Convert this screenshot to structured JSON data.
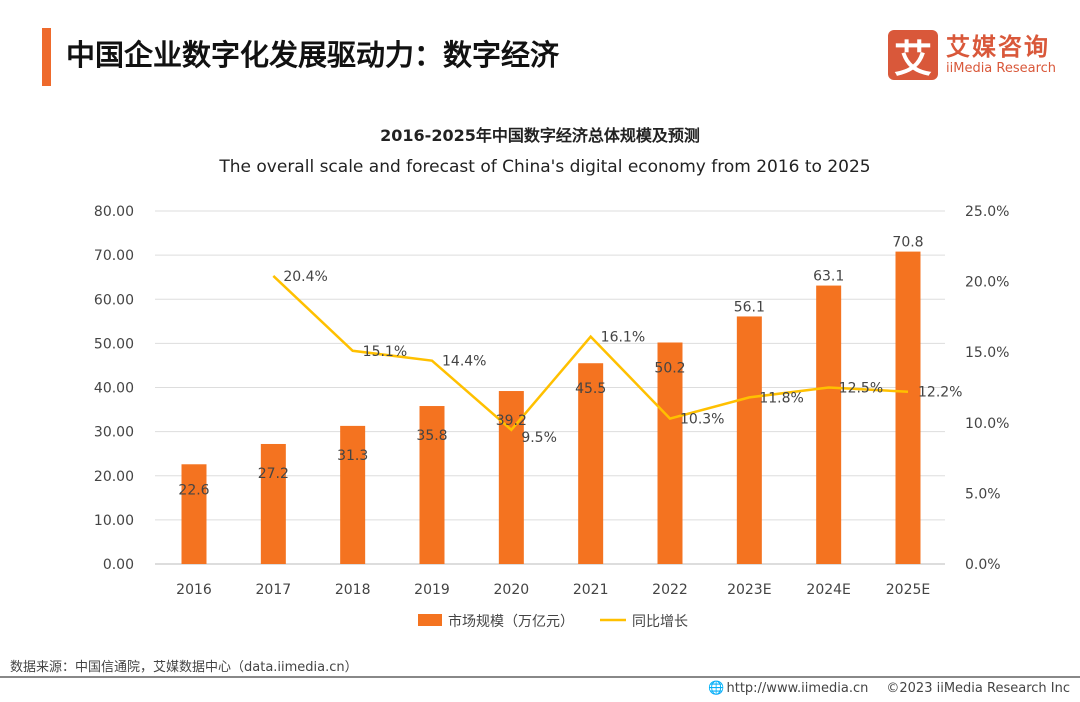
{
  "header": {
    "title": "中国企业数字化发展驱动力：数字经济",
    "logo_mark": "艾",
    "logo_cn": "艾媒咨询",
    "logo_en": "iiMedia Research"
  },
  "chart_data": {
    "type": "bar",
    "title": "2016-2025年中国数字经济总体规模及预测",
    "subtitle": "The overall scale and forecast of China's digital economy from 2016 to 2025",
    "categories": [
      "2016",
      "2017",
      "2018",
      "2019",
      "2020",
      "2021",
      "2022",
      "2023E",
      "2024E",
      "2025E"
    ],
    "series": [
      {
        "name": "市场规模（万亿元）",
        "type": "bar",
        "axis": "left",
        "color": "#f47320",
        "values": [
          22.6,
          27.2,
          31.3,
          35.8,
          39.2,
          45.5,
          50.2,
          56.1,
          63.1,
          70.8
        ],
        "labels": [
          "22.6",
          "27.2",
          "31.3",
          "35.8",
          "39.2",
          "45.5",
          "50.2",
          "56.1",
          "63.1",
          "70.8"
        ]
      },
      {
        "name": "同比增长",
        "type": "line",
        "axis": "right",
        "color": "#ffc000",
        "values": [
          null,
          20.4,
          15.1,
          14.4,
          9.5,
          16.1,
          10.3,
          11.8,
          12.5,
          12.2
        ],
        "labels": [
          "",
          "20.4%",
          "15.1%",
          "14.4%",
          "9.5%",
          "16.1%",
          "10.3%",
          "11.8%",
          "12.5%",
          "12.2%"
        ]
      }
    ],
    "ylim": [
      0,
      80
    ],
    "y2lim": [
      0,
      25
    ],
    "yticks": [
      "0.00",
      "10.00",
      "20.00",
      "30.00",
      "40.00",
      "50.00",
      "60.00",
      "70.00",
      "80.00"
    ],
    "y2ticks": [
      "0.0%",
      "5.0%",
      "10.0%",
      "15.0%",
      "20.0%",
      "25.0%"
    ],
    "grid": true,
    "legend": "bottom"
  },
  "source": "数据来源：中国信通院，艾媒数据中心（data.iimedia.cn）",
  "footer": {
    "url": "http://www.iimedia.cn",
    "copyright": "©2023  iiMedia Research  Inc"
  }
}
